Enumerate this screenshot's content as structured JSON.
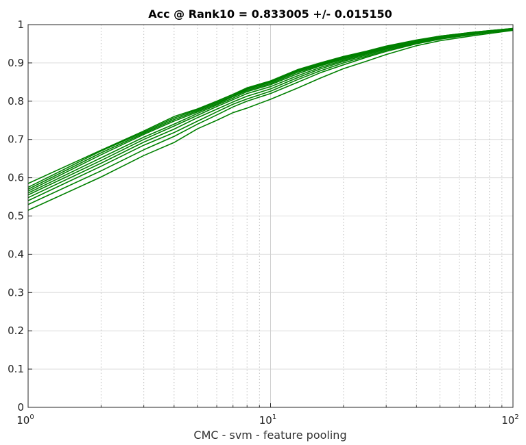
{
  "chart_data": {
    "type": "line",
    "title": "Acc @ Rank10 = 0.833005 +/- 0.015150",
    "xlabel": "CMC - svm - feature pooling",
    "ylabel": "",
    "xscale": "log",
    "xlim": [
      1,
      100
    ],
    "ylim": [
      0,
      1
    ],
    "grid": true,
    "line_color": "#008000",
    "x_ticks": [
      {
        "base": "10",
        "exp": "0",
        "value": 1
      },
      {
        "base": "10",
        "exp": "1",
        "value": 10
      },
      {
        "base": "10",
        "exp": "2",
        "value": 100
      }
    ],
    "y_ticks": [
      "0",
      "0.1",
      "0.2",
      "0.3",
      "0.4",
      "0.5",
      "0.6",
      "0.7",
      "0.8",
      "0.9",
      "1"
    ],
    "x": [
      1,
      2,
      3,
      4,
      5,
      6,
      7,
      8,
      10,
      13,
      16,
      20,
      25,
      30,
      40,
      50,
      70,
      100
    ],
    "series": [
      {
        "values": [
          0.515,
          0.602,
          0.658,
          0.692,
          0.728,
          0.75,
          0.77,
          0.782,
          0.805,
          0.835,
          0.86,
          0.885,
          0.905,
          0.922,
          0.945,
          0.958,
          0.972,
          0.985
        ]
      },
      {
        "values": [
          0.53,
          0.618,
          0.673,
          0.708,
          0.74,
          0.764,
          0.785,
          0.8,
          0.82,
          0.85,
          0.874,
          0.895,
          0.915,
          0.93,
          0.95,
          0.962,
          0.975,
          0.987
        ]
      },
      {
        "values": [
          0.54,
          0.63,
          0.685,
          0.718,
          0.748,
          0.772,
          0.792,
          0.806,
          0.826,
          0.857,
          0.879,
          0.9,
          0.918,
          0.933,
          0.952,
          0.963,
          0.976,
          0.987
        ]
      },
      {
        "values": [
          0.548,
          0.638,
          0.693,
          0.727,
          0.757,
          0.779,
          0.798,
          0.813,
          0.832,
          0.862,
          0.884,
          0.904,
          0.921,
          0.936,
          0.954,
          0.965,
          0.977,
          0.988
        ]
      },
      {
        "values": [
          0.555,
          0.645,
          0.7,
          0.735,
          0.763,
          0.786,
          0.804,
          0.82,
          0.838,
          0.867,
          0.888,
          0.907,
          0.924,
          0.938,
          0.955,
          0.966,
          0.978,
          0.988
        ]
      },
      {
        "values": [
          0.56,
          0.652,
          0.706,
          0.74,
          0.768,
          0.79,
          0.808,
          0.825,
          0.843,
          0.872,
          0.892,
          0.91,
          0.926,
          0.94,
          0.957,
          0.967,
          0.979,
          0.989
        ]
      },
      {
        "values": [
          0.565,
          0.66,
          0.713,
          0.748,
          0.772,
          0.793,
          0.812,
          0.828,
          0.846,
          0.876,
          0.894,
          0.912,
          0.928,
          0.941,
          0.958,
          0.968,
          0.98,
          0.989
        ]
      },
      {
        "values": [
          0.57,
          0.665,
          0.716,
          0.752,
          0.775,
          0.796,
          0.814,
          0.831,
          0.849,
          0.879,
          0.896,
          0.914,
          0.929,
          0.942,
          0.958,
          0.969,
          0.98,
          0.989
        ]
      },
      {
        "values": [
          0.575,
          0.67,
          0.719,
          0.756,
          0.778,
          0.799,
          0.817,
          0.833,
          0.851,
          0.881,
          0.898,
          0.915,
          0.93,
          0.943,
          0.959,
          0.97,
          0.981,
          0.99
        ]
      },
      {
        "values": [
          0.585,
          0.672,
          0.722,
          0.76,
          0.78,
          0.8,
          0.818,
          0.835,
          0.853,
          0.883,
          0.9,
          0.917,
          0.931,
          0.944,
          0.96,
          0.97,
          0.981,
          0.99
        ]
      }
    ]
  }
}
